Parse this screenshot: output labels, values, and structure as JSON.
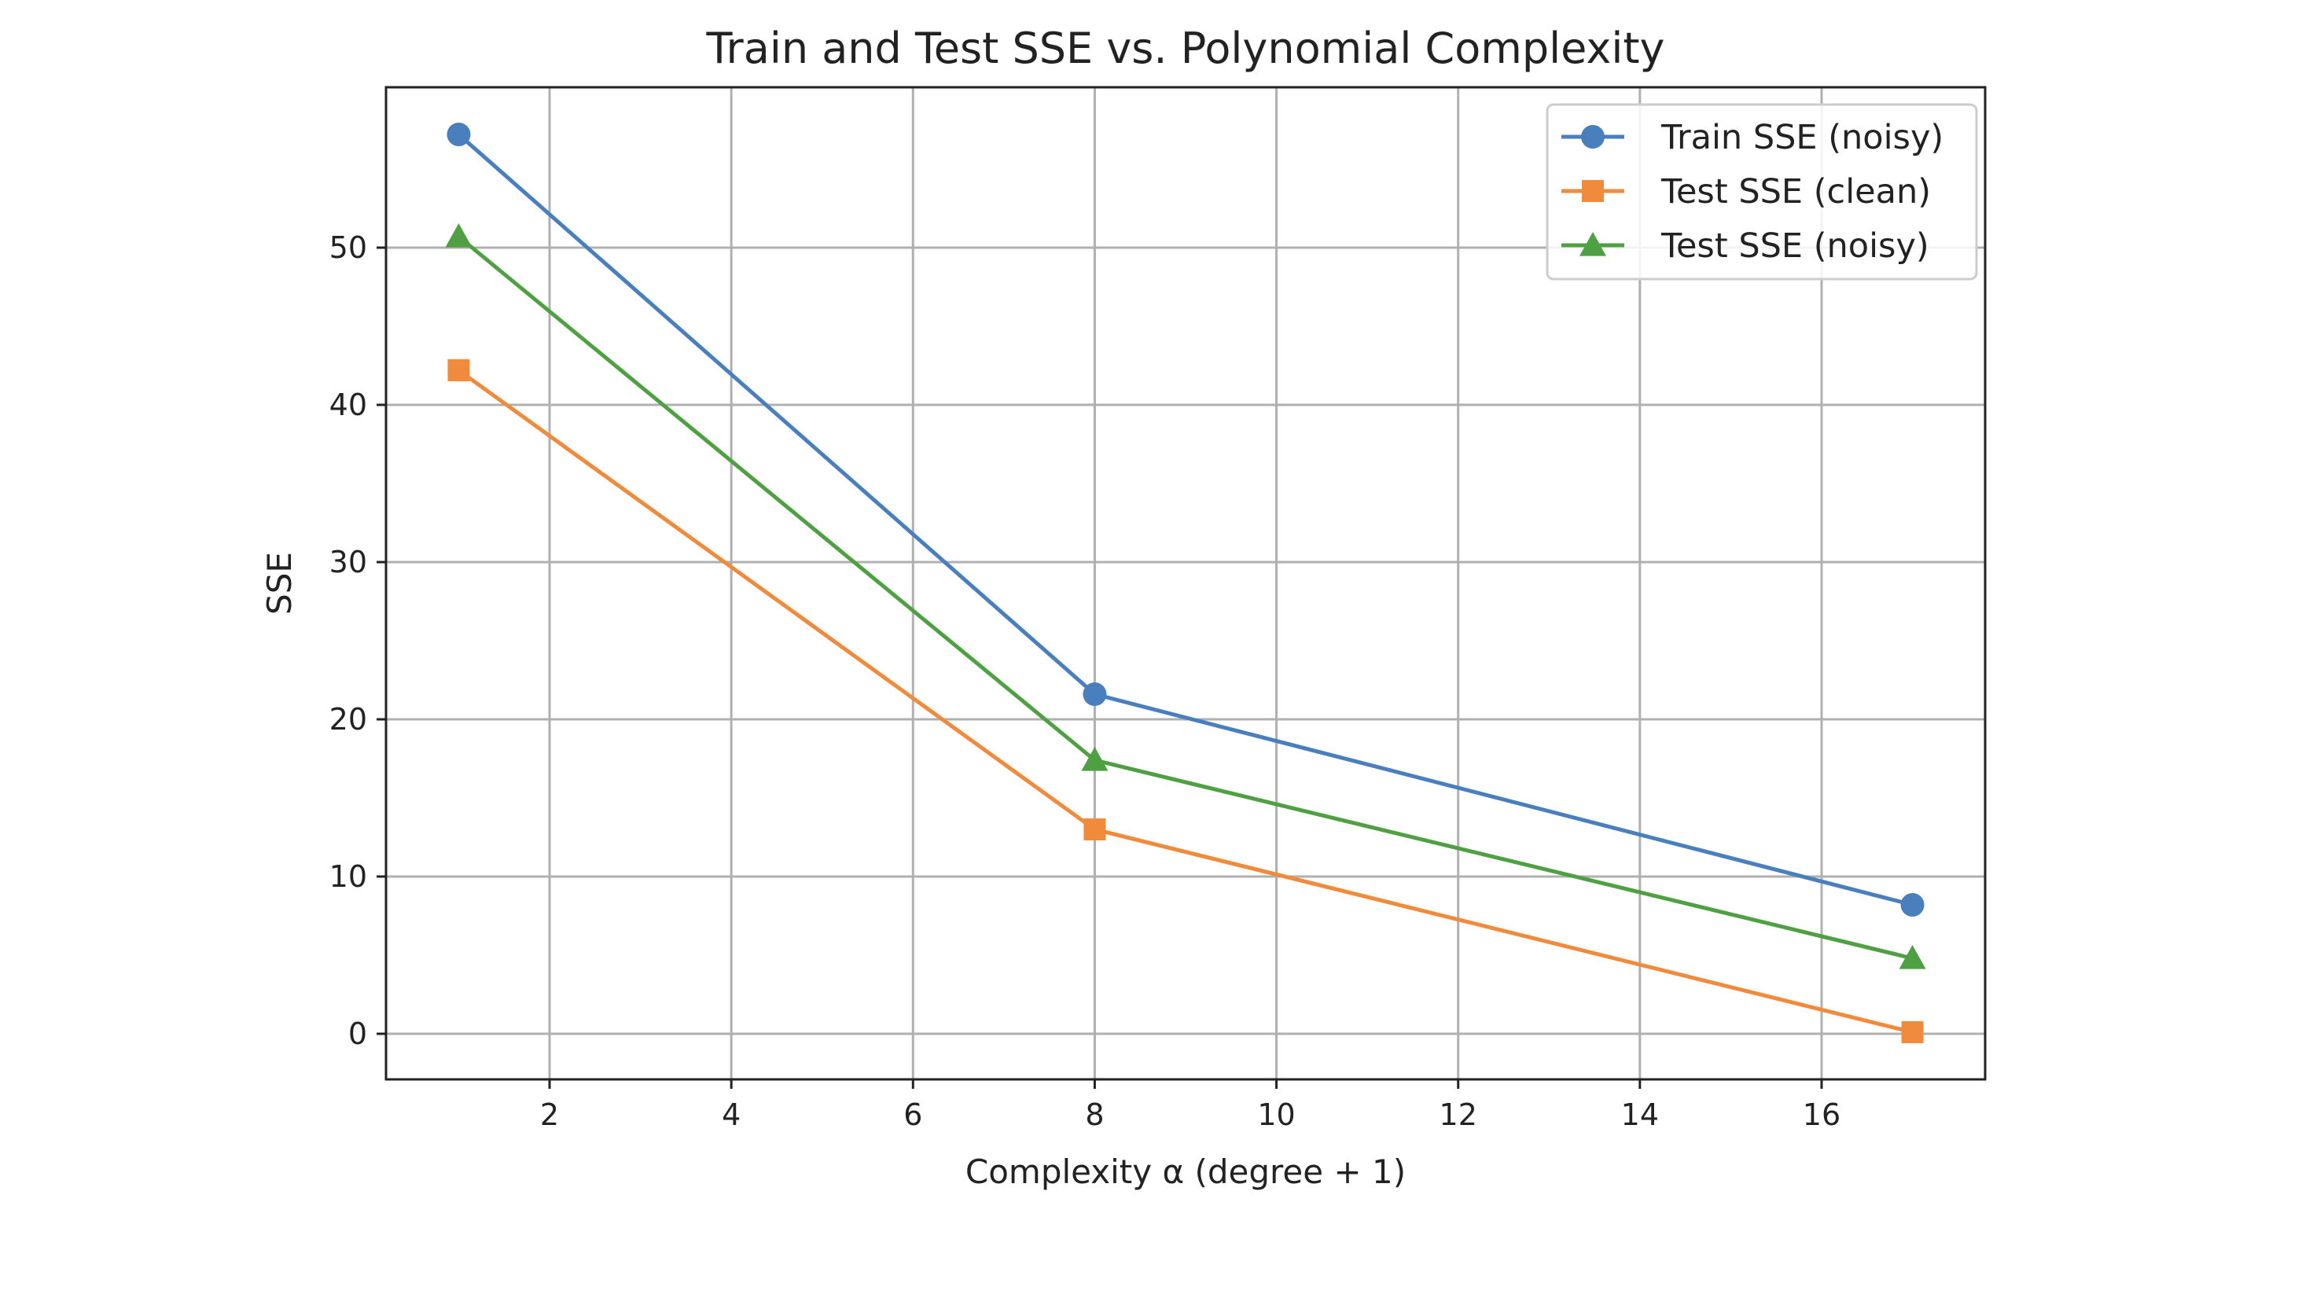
{
  "chart_data": {
    "type": "line",
    "title": "Train and Test SSE vs. Polynomial Complexity",
    "xlabel": "Complexity α (degree + 1)",
    "ylabel": "SSE",
    "x": [
      1,
      8,
      17
    ],
    "xlim": [
      0.2,
      17.8
    ],
    "ylim": [
      -2.9,
      60.2
    ],
    "xticks": [
      2,
      4,
      6,
      8,
      10,
      12,
      14,
      16
    ],
    "yticks": [
      0,
      10,
      20,
      30,
      40,
      50
    ],
    "grid": true,
    "legend_position": "top-right",
    "series": [
      {
        "name": "Train SSE (noisy)",
        "values": [
          57.2,
          21.6,
          8.2
        ],
        "color": "#4a7fbd",
        "marker": "circle"
      },
      {
        "name": "Test SSE (clean)",
        "values": [
          42.2,
          13.0,
          0.1
        ],
        "color": "#f08a3c",
        "marker": "square"
      },
      {
        "name": "Test SSE (noisy)",
        "values": [
          50.7,
          17.4,
          4.8
        ],
        "color": "#4fa043",
        "marker": "triangle"
      }
    ]
  }
}
